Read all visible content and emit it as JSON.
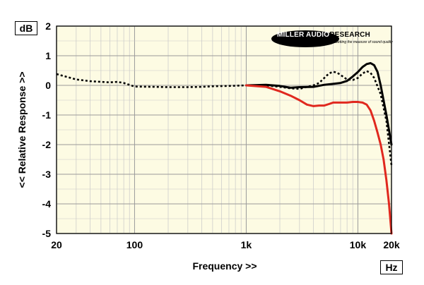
{
  "units": {
    "y": "dB",
    "x": "Hz"
  },
  "logo": {
    "part1": "MILLER AUDIO",
    "part2": "RESEARCH",
    "tagline": "Getting the measure of sound quality"
  },
  "colors": {
    "background": "#ffffff",
    "plot_bg": "#fdfbe3",
    "grid": "#c8c8c8",
    "black": "#000000",
    "red": "#e0281e"
  },
  "chart_data": {
    "type": "line",
    "xlabel": "Frequency >>",
    "ylabel": "<< Relative Response >>",
    "x_scale": "log",
    "xlim": [
      20,
      20000
    ],
    "ylim": [
      -5,
      2
    ],
    "grid": true,
    "x_ticks": [
      {
        "value": 20,
        "label": "20"
      },
      {
        "value": 100,
        "label": "100"
      },
      {
        "value": 1000,
        "label": "1k"
      },
      {
        "value": 10000,
        "label": "10k"
      },
      {
        "value": 20000,
        "label": "20k"
      }
    ],
    "y_ticks": [
      {
        "value": 2,
        "label": "2"
      },
      {
        "value": 1,
        "label": "1"
      },
      {
        "value": 0,
        "label": "0"
      },
      {
        "value": -1,
        "label": "-1"
      },
      {
        "value": -2,
        "label": "-2"
      },
      {
        "value": -3,
        "label": "-3"
      },
      {
        "value": -4,
        "label": "-4"
      },
      {
        "value": -5,
        "label": "-5"
      }
    ],
    "series": [
      {
        "color": "#000000",
        "style": "dotted",
        "x": [
          20,
          25,
          30,
          40,
          50,
          60,
          70,
          80,
          100,
          150,
          200,
          300,
          400,
          500,
          700,
          1000,
          1500,
          2000,
          2500,
          3000,
          3500,
          4000,
          4500,
          5000,
          5500,
          6000,
          6500,
          7000,
          8000,
          9000,
          10000,
          11000,
          12000,
          13000,
          14000,
          16000,
          18000,
          20000
        ],
        "y": [
          0.38,
          0.28,
          0.2,
          0.14,
          0.12,
          0.1,
          0.12,
          0.08,
          -0.04,
          -0.05,
          -0.06,
          -0.06,
          -0.05,
          -0.03,
          -0.02,
          0.0,
          0.0,
          -0.05,
          -0.1,
          -0.12,
          -0.05,
          0.0,
          0.08,
          0.25,
          0.4,
          0.46,
          0.43,
          0.35,
          0.2,
          0.18,
          0.25,
          0.4,
          0.48,
          0.42,
          0.25,
          -0.3,
          -1.2,
          -2.7
        ]
      },
      {
        "color": "#000000",
        "style": "solid",
        "x": [
          1000,
          1500,
          2000,
          2500,
          3000,
          4000,
          5000,
          6000,
          7000,
          8000,
          9000,
          10000,
          11000,
          12000,
          13000,
          14000,
          15000,
          16000,
          18000,
          20000
        ],
        "y": [
          0.0,
          0.02,
          -0.02,
          -0.08,
          -0.06,
          -0.05,
          0.02,
          0.05,
          0.08,
          0.15,
          0.3,
          0.45,
          0.62,
          0.72,
          0.75,
          0.68,
          0.45,
          0.0,
          -1.0,
          -2.0
        ]
      },
      {
        "color": "#e0281e",
        "style": "solid",
        "x": [
          1000,
          1500,
          2000,
          2500,
          3000,
          3500,
          4000,
          4500,
          5000,
          5500,
          6000,
          7000,
          8000,
          9000,
          10000,
          11000,
          12000,
          13000,
          14000,
          15000,
          16000,
          17000,
          18000,
          19000,
          20000
        ],
        "y": [
          0.0,
          -0.05,
          -0.2,
          -0.35,
          -0.5,
          -0.65,
          -0.7,
          -0.68,
          -0.68,
          -0.63,
          -0.58,
          -0.58,
          -0.58,
          -0.56,
          -0.56,
          -0.58,
          -0.65,
          -0.85,
          -1.2,
          -1.6,
          -2.0,
          -2.5,
          -3.2,
          -4.0,
          -5.0
        ]
      }
    ]
  }
}
